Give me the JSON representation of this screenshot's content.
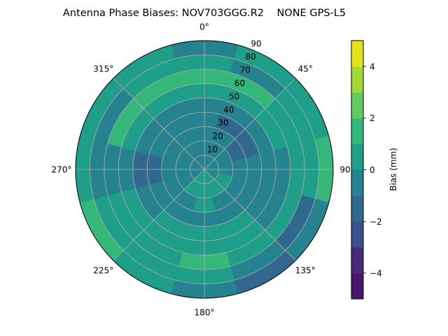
{
  "chart_data": {
    "type": "heatmap",
    "subtype": "polar-contour",
    "title": "Antenna Phase Biases: NOV703GGG.R2    NONE GPS-L5",
    "angular_axis": {
      "direction": "clockwise",
      "zero": "top",
      "tick_labels": [
        "0°",
        "45°",
        "90°",
        "135°",
        "180°",
        "225°",
        "270°",
        "315°"
      ],
      "tick_values": [
        0,
        45,
        90,
        135,
        180,
        225,
        270,
        315
      ]
    },
    "radial_axis": {
      "range": [
        0,
        90
      ],
      "tick_values": [
        10,
        20,
        30,
        40,
        50,
        60,
        70,
        80,
        90
      ],
      "tick_labels": [
        "10",
        "20",
        "30",
        "40",
        "50",
        "60",
        "70",
        "80",
        "90"
      ]
    },
    "grid": true,
    "azimuth_centers": [
      0,
      30,
      60,
      90,
      120,
      150,
      180,
      210,
      240,
      270,
      300,
      330
    ],
    "zenith_bands": [
      [
        0,
        10
      ],
      [
        10,
        20
      ],
      [
        20,
        30
      ],
      [
        30,
        40
      ],
      [
        40,
        50
      ],
      [
        50,
        60
      ],
      [
        60,
        70
      ],
      [
        70,
        80
      ],
      [
        80,
        90
      ]
    ],
    "values_mm": [
      [
        -0.5,
        -0.5,
        -0.5,
        -0.5,
        -0.5,
        0.5,
        1.5,
        0.5,
        -0.5
      ],
      [
        -0.5,
        -0.5,
        -0.5,
        -1.5,
        -0.5,
        0.5,
        1.5,
        -0.5,
        0.5
      ],
      [
        -0.5,
        -0.5,
        -1.5,
        -1.5,
        -0.5,
        0.5,
        0.5,
        0.5,
        0.5
      ],
      [
        -0.5,
        -0.5,
        -0.5,
        -0.5,
        -0.5,
        -0.5,
        0.5,
        0.5,
        1.5
      ],
      [
        -0.5,
        0.5,
        -0.5,
        -0.5,
        -0.5,
        -0.5,
        0.5,
        -1.5,
        -0.5
      ],
      [
        0.5,
        0.5,
        -0.5,
        -0.5,
        0.5,
        0.5,
        0.5,
        -0.5,
        -1.5
      ],
      [
        0.5,
        0.5,
        0.5,
        -0.5,
        0.5,
        0.5,
        1.5,
        0.5,
        -0.5
      ],
      [
        0.5,
        0.5,
        -0.5,
        -0.5,
        0.5,
        0.5,
        0.5,
        0.5,
        0.5
      ],
      [
        -0.5,
        -0.5,
        -0.5,
        -0.5,
        -0.5,
        0.5,
        0.5,
        0.5,
        1.5
      ],
      [
        -0.5,
        -0.5,
        -0.5,
        -1.5,
        -1.5,
        -0.5,
        -0.5,
        -0.5,
        0.5
      ],
      [
        -0.5,
        -0.5,
        -0.5,
        -0.5,
        -0.5,
        0.5,
        1.5,
        -0.5,
        0.5
      ],
      [
        -0.5,
        -0.5,
        -0.5,
        -0.5,
        -0.5,
        0.5,
        1.5,
        0.5,
        0.5
      ]
    ],
    "colorbar": {
      "label": "Bias (mm)",
      "range": [
        -5,
        5
      ],
      "levels": [
        -5,
        -4,
        -3,
        -2,
        -1,
        0,
        1,
        2,
        3,
        4,
        5
      ],
      "tick_values": [
        -4,
        -2,
        0,
        2,
        4
      ],
      "tick_labels": [
        "−4",
        "−2",
        "0",
        "2",
        "4"
      ],
      "colormap": "viridis",
      "colors": [
        "#481769",
        "#472a7a",
        "#3b518b",
        "#30688e",
        "#26828e",
        "#1f9e89",
        "#35b779",
        "#62cb5f",
        "#a0da39",
        "#e3e418"
      ]
    }
  }
}
